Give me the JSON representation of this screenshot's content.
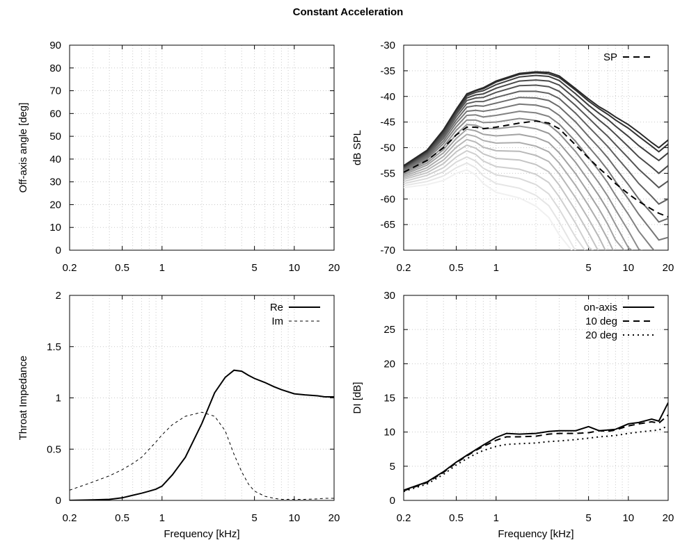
{
  "figure": {
    "title": "Constant Acceleration"
  },
  "chart_data": [
    {
      "id": "offaxis",
      "type": "line",
      "xscale": "log",
      "xlim": [
        0.2,
        20
      ],
      "ylim": [
        0,
        90
      ],
      "xticks": [
        0.2,
        0.5,
        1,
        5,
        10,
        20
      ],
      "xtick_labels": [
        "0.2",
        "0.5",
        "1",
        "5",
        "10",
        "20"
      ],
      "yticks": [
        0,
        10,
        20,
        30,
        40,
        50,
        60,
        70,
        80,
        90
      ],
      "ytick_labels": [
        "0",
        "10",
        "20",
        "30",
        "40",
        "50",
        "60",
        "70",
        "80",
        "90"
      ],
      "xlabel": "",
      "ylabel": "Off-axis angle [deg]",
      "grid": true,
      "series": []
    },
    {
      "id": "spl",
      "type": "line",
      "xscale": "log",
      "xlim": [
        0.2,
        20
      ],
      "ylim": [
        -70,
        -30
      ],
      "xticks": [
        0.2,
        0.5,
        1,
        5,
        10,
        20
      ],
      "xtick_labels": [
        "0.2",
        "0.5",
        "1",
        "5",
        "10",
        "20"
      ],
      "yticks": [
        -70,
        -65,
        -60,
        -55,
        -50,
        -45,
        -40,
        -35,
        -30
      ],
      "ytick_labels": [
        "-70",
        "-65",
        "-60",
        "-55",
        "-50",
        "-45",
        "-40",
        "-35",
        "-30"
      ],
      "xlabel": "",
      "ylabel": "dB SPL",
      "grid": true,
      "legend_position": "top-right",
      "x": [
        0.2,
        0.3,
        0.4,
        0.5,
        0.6,
        0.7,
        0.8,
        1,
        1.5,
        2,
        2.5,
        3,
        4,
        5,
        6,
        7,
        8,
        10,
        12,
        15,
        17,
        20
      ],
      "curve_family": [
        {
          "angle": 0,
          "y": [
            -53.5,
            -50.5,
            -46.5,
            -42.5,
            -39.5,
            -38.8,
            -38.3,
            -37.0,
            -35.5,
            -35.2,
            -35.3,
            -36.0,
            -38.5,
            -40.5,
            -42.0,
            -43.0,
            -44.0,
            -45.5,
            -47.0,
            -49.0,
            -50.0,
            -48.5
          ]
        },
        {
          "angle": 5,
          "y": [
            -53.6,
            -50.6,
            -46.6,
            -42.6,
            -39.6,
            -38.9,
            -38.5,
            -37.2,
            -35.7,
            -35.4,
            -35.6,
            -36.3,
            -38.8,
            -40.9,
            -42.4,
            -43.5,
            -44.6,
            -46.2,
            -47.8,
            -49.7,
            -50.8,
            -49.3
          ]
        },
        {
          "angle": 10,
          "y": [
            -53.7,
            -50.7,
            -46.8,
            -42.8,
            -39.9,
            -39.2,
            -38.9,
            -37.7,
            -36.2,
            -35.9,
            -36.1,
            -36.9,
            -39.5,
            -41.7,
            -43.3,
            -44.5,
            -45.8,
            -47.8,
            -49.6,
            -51.5,
            -52.5,
            -51.0
          ]
        },
        {
          "angle": 15,
          "y": [
            -53.8,
            -50.9,
            -47.1,
            -43.1,
            -40.3,
            -39.7,
            -39.5,
            -38.4,
            -37.0,
            -36.8,
            -37.0,
            -37.8,
            -40.5,
            -42.8,
            -44.6,
            -46.0,
            -47.4,
            -49.8,
            -51.8,
            -53.8,
            -55.0,
            -53.5
          ]
        },
        {
          "angle": 20,
          "y": [
            -53.9,
            -51.1,
            -47.4,
            -43.5,
            -40.8,
            -40.3,
            -40.2,
            -39.2,
            -37.9,
            -37.8,
            -38.1,
            -39.0,
            -41.8,
            -44.2,
            -46.2,
            -47.8,
            -49.4,
            -52.0,
            -54.2,
            -56.5,
            -57.8,
            -56.5
          ]
        },
        {
          "angle": 25,
          "y": [
            -54.0,
            -51.3,
            -47.8,
            -44.0,
            -41.4,
            -41.0,
            -41.0,
            -40.2,
            -39.0,
            -39.0,
            -39.4,
            -40.4,
            -43.3,
            -45.9,
            -48.0,
            -49.8,
            -51.6,
            -54.5,
            -57.0,
            -59.5,
            -61.0,
            -60.0
          ]
        },
        {
          "angle": 30,
          "y": [
            -54.2,
            -51.6,
            -48.2,
            -44.6,
            -42.1,
            -41.8,
            -41.9,
            -41.3,
            -40.2,
            -40.3,
            -40.8,
            -42.0,
            -45.0,
            -47.8,
            -50.0,
            -52.0,
            -54.0,
            -57.2,
            -60.0,
            -62.8,
            -64.5,
            -63.8
          ]
        },
        {
          "angle": 35,
          "y": [
            -54.4,
            -51.9,
            -48.7,
            -45.2,
            -42.9,
            -42.7,
            -42.9,
            -42.5,
            -41.5,
            -41.7,
            -42.3,
            -43.7,
            -46.9,
            -49.8,
            -52.2,
            -54.4,
            -56.6,
            -60.0,
            -63.0,
            -66.2,
            -68.0,
            -67.5
          ]
        },
        {
          "angle": 40,
          "y": [
            -54.6,
            -52.2,
            -49.2,
            -45.9,
            -43.7,
            -43.6,
            -44.0,
            -43.7,
            -42.9,
            -43.2,
            -43.9,
            -45.4,
            -48.8,
            -51.9,
            -54.5,
            -56.9,
            -59.3,
            -63.0,
            -66.3,
            -69.5,
            -71.0,
            -71.0
          ]
        },
        {
          "angle": 45,
          "y": [
            -54.8,
            -52.6,
            -49.8,
            -46.6,
            -44.6,
            -44.6,
            -45.1,
            -45.0,
            -44.3,
            -44.7,
            -45.5,
            -47.2,
            -50.8,
            -54.1,
            -56.9,
            -59.5,
            -62.1,
            -66.2,
            -69.8,
            -71.0,
            -71.0,
            -71.0
          ]
        },
        {
          "angle": 50,
          "y": [
            -55.0,
            -53.0,
            -50.4,
            -47.4,
            -45.5,
            -45.6,
            -46.2,
            -46.3,
            -45.8,
            -46.3,
            -47.2,
            -49.1,
            -52.9,
            -56.4,
            -59.4,
            -62.2,
            -65.0,
            -69.5,
            -71.0,
            -71.0,
            -71.0,
            -71.0
          ]
        },
        {
          "angle": 55,
          "y": [
            -55.3,
            -53.4,
            -51.0,
            -48.2,
            -46.4,
            -46.7,
            -47.4,
            -47.7,
            -47.4,
            -48.0,
            -49.0,
            -51.0,
            -55.1,
            -58.8,
            -62.0,
            -65.0,
            -68.0,
            -71.0,
            -71.0,
            -71.0,
            -71.0,
            -71.0
          ]
        },
        {
          "angle": 60,
          "y": [
            -55.6,
            -53.9,
            -51.7,
            -49.0,
            -47.4,
            -47.8,
            -48.6,
            -49.1,
            -49.0,
            -49.7,
            -50.8,
            -53.0,
            -57.4,
            -61.3,
            -64.7,
            -67.9,
            -71.0,
            -71.0,
            -71.0,
            -71.0,
            -71.0,
            -71.0
          ]
        },
        {
          "angle": 65,
          "y": [
            -55.9,
            -54.4,
            -52.4,
            -49.9,
            -48.4,
            -48.9,
            -49.9,
            -50.6,
            -50.7,
            -51.5,
            -52.7,
            -55.1,
            -59.8,
            -63.9,
            -67.5,
            -71.0,
            -71.0,
            -71.0,
            -71.0,
            -71.0,
            -71.0,
            -71.0
          ]
        },
        {
          "angle": 70,
          "y": [
            -56.2,
            -54.9,
            -53.1,
            -50.8,
            -49.5,
            -50.1,
            -51.2,
            -52.1,
            -52.4,
            -53.3,
            -54.7,
            -57.3,
            -62.3,
            -66.6,
            -70.4,
            -71.0,
            -71.0,
            -71.0,
            -71.0,
            -71.0,
            -71.0,
            -71.0
          ]
        },
        {
          "angle": 75,
          "y": [
            -56.6,
            -55.4,
            -53.9,
            -51.8,
            -50.6,
            -51.3,
            -52.6,
            -53.7,
            -54.2,
            -55.2,
            -56.8,
            -59.6,
            -64.8,
            -69.4,
            -71.0,
            -71.0,
            -71.0,
            -71.0,
            -71.0,
            -71.0,
            -71.0,
            -71.0
          ]
        },
        {
          "angle": 80,
          "y": [
            -57.0,
            -56.0,
            -54.7,
            -52.8,
            -51.8,
            -52.6,
            -54.0,
            -55.3,
            -56.0,
            -57.2,
            -59.0,
            -62.0,
            -67.5,
            -71.0,
            -71.0,
            -71.0,
            -71.0,
            -71.0,
            -71.0,
            -71.0,
            -71.0,
            -71.0
          ]
        },
        {
          "angle": 85,
          "y": [
            -57.4,
            -56.6,
            -55.5,
            -53.9,
            -53.0,
            -53.9,
            -55.5,
            -57.0,
            -57.9,
            -59.3,
            -61.3,
            -64.5,
            -70.2,
            -71.0,
            -71.0,
            -71.0,
            -71.0,
            -71.0,
            -71.0,
            -71.0,
            -71.0,
            -71.0
          ]
        },
        {
          "angle": 90,
          "y": [
            -57.8,
            -57.2,
            -56.4,
            -55.0,
            -54.3,
            -55.3,
            -57.0,
            -58.7,
            -59.8,
            -61.4,
            -63.6,
            -67.0,
            -71.0,
            -71.0,
            -71.0,
            -71.0,
            -71.0,
            -71.0,
            -71.0,
            -71.0,
            -71.0,
            -71.0
          ]
        }
      ],
      "series": [
        {
          "name": "SP",
          "style": "dashed",
          "y": [
            -54.8,
            -52.5,
            -50.0,
            -47.5,
            -46.0,
            -46.0,
            -46.3,
            -46.0,
            -45.2,
            -44.8,
            -45.2,
            -46.3,
            -49.5,
            -52.0,
            -54.0,
            -55.5,
            -57.0,
            -59.0,
            -60.5,
            -62.0,
            -62.8,
            -63.5
          ]
        }
      ]
    },
    {
      "id": "impedance",
      "type": "line",
      "xscale": "log",
      "xlim": [
        0.2,
        20
      ],
      "ylim": [
        0,
        2
      ],
      "xticks": [
        0.2,
        0.5,
        1,
        5,
        10,
        20
      ],
      "xtick_labels": [
        "0.2",
        "0.5",
        "1",
        "5",
        "10",
        "20"
      ],
      "yticks": [
        0,
        0.5,
        1,
        1.5,
        2
      ],
      "ytick_labels": [
        "0",
        "0.5",
        "1",
        "1.5",
        "2"
      ],
      "xlabel": "Frequency [kHz]",
      "ylabel": "Throat Impedance",
      "grid": true,
      "legend_position": "top-right",
      "x": [
        0.2,
        0.3,
        0.4,
        0.5,
        0.6,
        0.7,
        0.8,
        0.9,
        1,
        1.2,
        1.5,
        2,
        2.5,
        3,
        3.5,
        4,
        4.5,
        5,
        6,
        7,
        8,
        10,
        12,
        15,
        17,
        20
      ],
      "series": [
        {
          "name": "Re",
          "style": "solid",
          "y": [
            0.0,
            0.005,
            0.01,
            0.025,
            0.05,
            0.07,
            0.09,
            0.11,
            0.14,
            0.25,
            0.42,
            0.75,
            1.05,
            1.2,
            1.27,
            1.26,
            1.22,
            1.19,
            1.15,
            1.11,
            1.08,
            1.04,
            1.03,
            1.02,
            1.01,
            1.01
          ]
        },
        {
          "name": "Im",
          "style": "dashed",
          "y": [
            0.1,
            0.18,
            0.24,
            0.3,
            0.36,
            0.42,
            0.5,
            0.57,
            0.64,
            0.74,
            0.82,
            0.86,
            0.82,
            0.68,
            0.45,
            0.28,
            0.16,
            0.09,
            0.04,
            0.02,
            0.01,
            0.01,
            0.01,
            0.015,
            0.02,
            0.02
          ]
        }
      ]
    },
    {
      "id": "di",
      "type": "line",
      "xscale": "log",
      "xlim": [
        0.2,
        20
      ],
      "ylim": [
        0,
        30
      ],
      "xticks": [
        0.2,
        0.5,
        1,
        5,
        10,
        20
      ],
      "xtick_labels": [
        "0.2",
        "0.5",
        "1",
        "5",
        "10",
        "20"
      ],
      "yticks": [
        0,
        5,
        10,
        15,
        20,
        25,
        30
      ],
      "ytick_labels": [
        "0",
        "5",
        "10",
        "15",
        "20",
        "25",
        "30"
      ],
      "xlabel": "Frequency [kHz]",
      "ylabel": "DI [dB]",
      "grid": true,
      "legend_position": "top-right",
      "x": [
        0.2,
        0.3,
        0.4,
        0.5,
        0.6,
        0.7,
        0.8,
        1,
        1.2,
        1.5,
        2,
        2.5,
        3,
        4,
        5,
        6,
        7,
        8,
        10,
        12,
        15,
        17,
        20
      ],
      "series": [
        {
          "name": "on-axis",
          "style": "solid",
          "y": [
            1.5,
            2.7,
            4.2,
            5.6,
            6.6,
            7.4,
            8.1,
            9.2,
            9.8,
            9.7,
            9.8,
            10.1,
            10.2,
            10.2,
            10.8,
            10.2,
            10.3,
            10.4,
            11.2,
            11.4,
            11.9,
            11.6,
            14.3
          ]
        },
        {
          "name": "10 deg",
          "style": "dashed",
          "y": [
            1.4,
            2.6,
            4.1,
            5.5,
            6.5,
            7.3,
            7.9,
            8.8,
            9.3,
            9.3,
            9.4,
            9.7,
            9.8,
            9.8,
            9.9,
            10.2,
            10.1,
            10.3,
            10.9,
            11.2,
            11.5,
            11.3,
            12.5
          ]
        },
        {
          "name": "20 deg",
          "style": "dotted",
          "y": [
            1.3,
            2.4,
            3.8,
            5.2,
            6.1,
            6.8,
            7.3,
            7.9,
            8.2,
            8.3,
            8.4,
            8.6,
            8.7,
            8.9,
            9.1,
            9.3,
            9.4,
            9.5,
            9.8,
            10.0,
            10.2,
            10.3,
            10.9
          ]
        }
      ]
    }
  ]
}
